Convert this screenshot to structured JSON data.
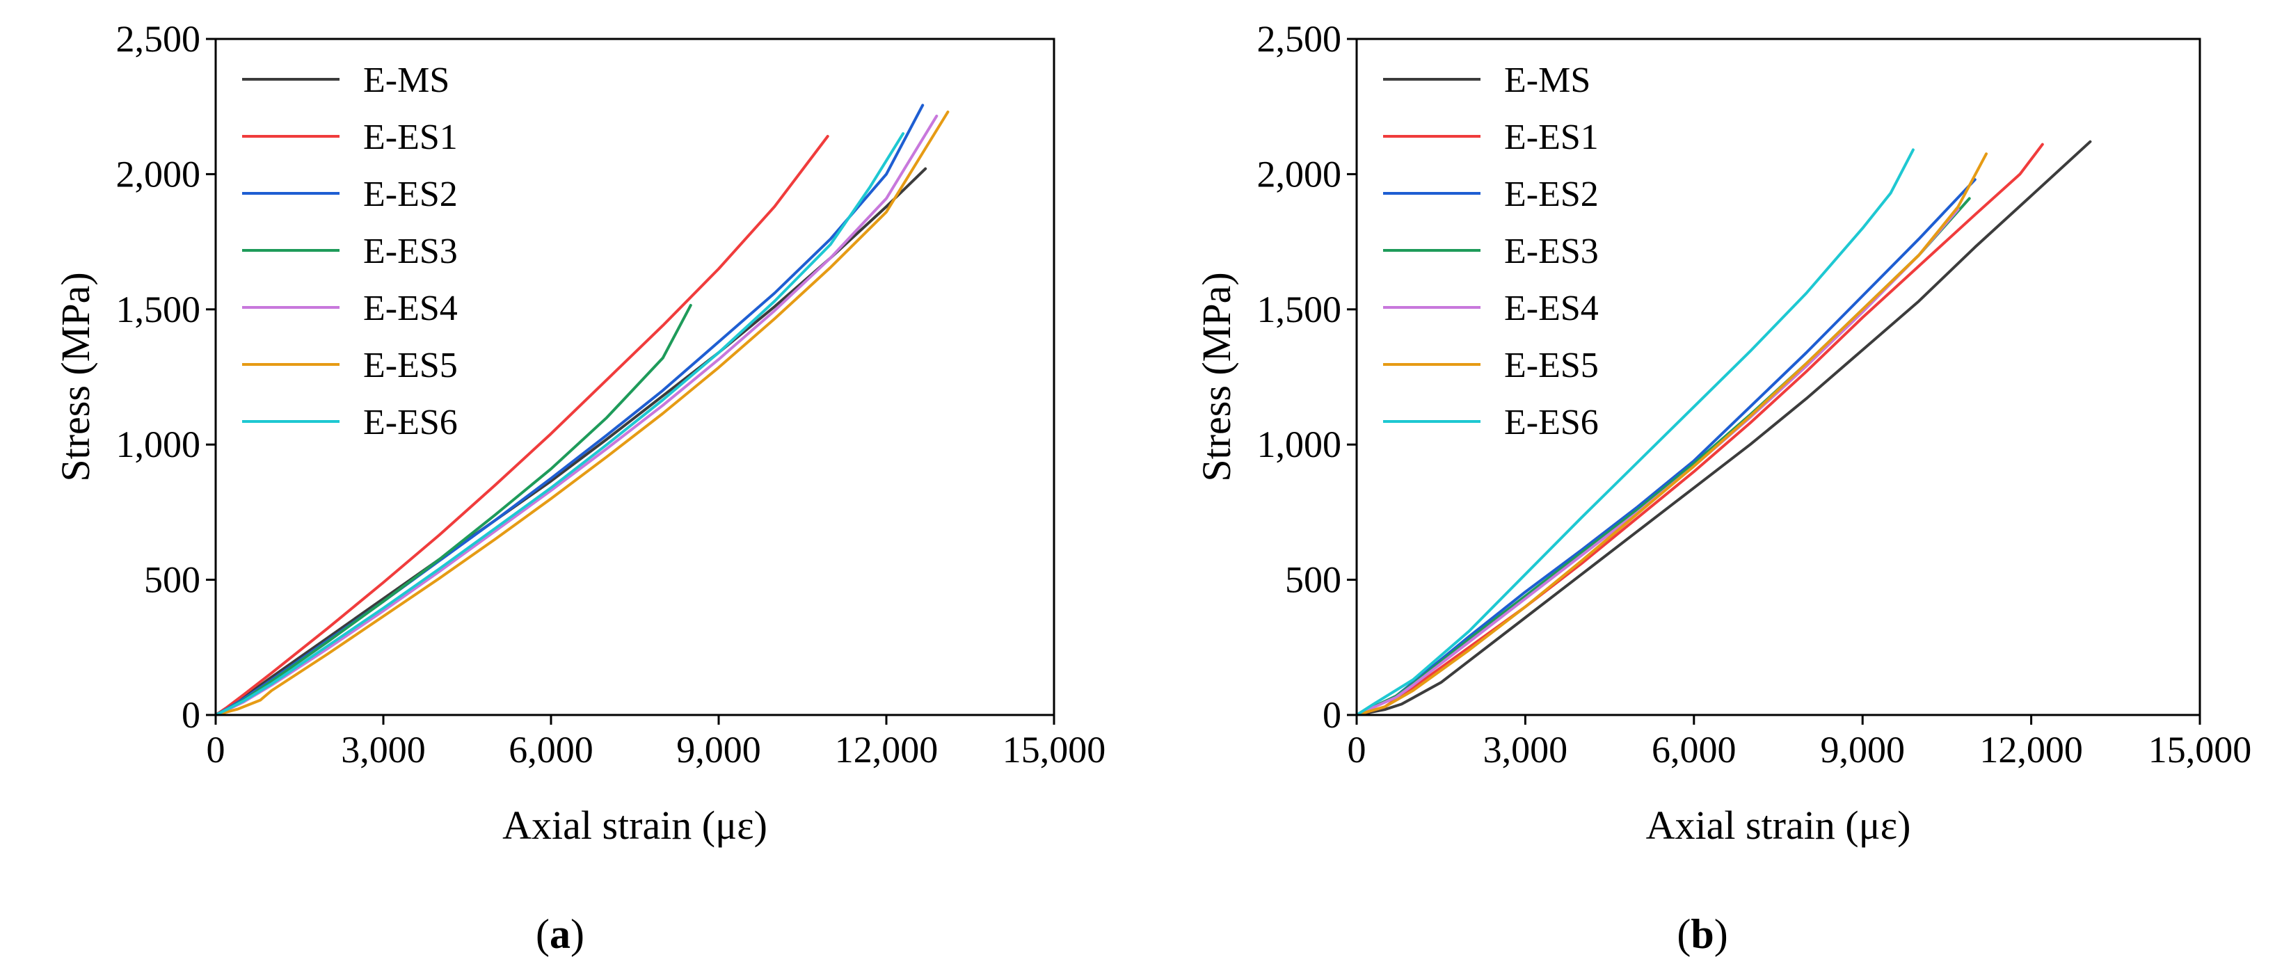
{
  "chart_data": [
    {
      "type": "line",
      "panel_label": "a",
      "xlabel": "Axial strain (με)",
      "ylabel": "Stress (MPa)",
      "xlim": [
        0,
        15000
      ],
      "ylim": [
        0,
        2500
      ],
      "xticks": [
        0,
        3000,
        6000,
        9000,
        12000,
        15000
      ],
      "yticks": [
        0,
        500,
        1000,
        1500,
        2000,
        2500
      ],
      "xtick_labels": [
        "0",
        "3,000",
        "6,000",
        "9,000",
        "12,000",
        "15,000"
      ],
      "ytick_labels": [
        "0",
        "500",
        "1,000",
        "1,500",
        "2,000",
        "2,500"
      ],
      "legend_position": "top-left",
      "series": [
        {
          "name": "E-MS",
          "color": "#3c3c3c",
          "points": [
            [
              0,
              0
            ],
            [
              200,
              25
            ],
            [
              500,
              65
            ],
            [
              1000,
              140
            ],
            [
              2000,
              285
            ],
            [
              3000,
              430
            ],
            [
              4000,
              575
            ],
            [
              5000,
              720
            ],
            [
              6000,
              865
            ],
            [
              7000,
              1020
            ],
            [
              8000,
              1180
            ],
            [
              9000,
              1340
            ],
            [
              10000,
              1510
            ],
            [
              11000,
              1690
            ],
            [
              12000,
              1880
            ],
            [
              12700,
              2020
            ]
          ]
        },
        {
          "name": "E-ES1",
          "color": "#f03c3c",
          "points": [
            [
              0,
              0
            ],
            [
              200,
              28
            ],
            [
              500,
              75
            ],
            [
              1000,
              155
            ],
            [
              2000,
              320
            ],
            [
              3000,
              490
            ],
            [
              4000,
              665
            ],
            [
              5000,
              850
            ],
            [
              6000,
              1040
            ],
            [
              7000,
              1240
            ],
            [
              8000,
              1440
            ],
            [
              9000,
              1650
            ],
            [
              10000,
              1880
            ],
            [
              10950,
              2140
            ]
          ]
        },
        {
          "name": "E-ES2",
          "color": "#1e5ed2",
          "points": [
            [
              0,
              0
            ],
            [
              200,
              22
            ],
            [
              500,
              60
            ],
            [
              1000,
              130
            ],
            [
              2000,
              275
            ],
            [
              3000,
              420
            ],
            [
              4000,
              570
            ],
            [
              5000,
              720
            ],
            [
              6000,
              875
            ],
            [
              7000,
              1035
            ],
            [
              8000,
              1200
            ],
            [
              9000,
              1380
            ],
            [
              10000,
              1560
            ],
            [
              11000,
              1760
            ],
            [
              12000,
              2000
            ],
            [
              12650,
              2255
            ]
          ]
        },
        {
          "name": "E-ES3",
          "color": "#1e9b5a",
          "points": [
            [
              0,
              0
            ],
            [
              200,
              20
            ],
            [
              500,
              55
            ],
            [
              1000,
              125
            ],
            [
              2000,
              270
            ],
            [
              3000,
              420
            ],
            [
              4000,
              575
            ],
            [
              5000,
              740
            ],
            [
              6000,
              910
            ],
            [
              7000,
              1100
            ],
            [
              8000,
              1320
            ],
            [
              8500,
              1515
            ]
          ]
        },
        {
          "name": "E-ES4",
          "color": "#c878dc",
          "points": [
            [
              0,
              0
            ],
            [
              200,
              18
            ],
            [
              500,
              48
            ],
            [
              1000,
              110
            ],
            [
              2000,
              245
            ],
            [
              3000,
              385
            ],
            [
              4000,
              530
            ],
            [
              5000,
              680
            ],
            [
              6000,
              830
            ],
            [
              7000,
              985
            ],
            [
              8000,
              1145
            ],
            [
              9000,
              1315
            ],
            [
              10000,
              1495
            ],
            [
              11000,
              1690
            ],
            [
              12000,
              1910
            ],
            [
              12900,
              2215
            ]
          ]
        },
        {
          "name": "E-ES5",
          "color": "#e69b14",
          "points": [
            [
              0,
              0
            ],
            [
              400,
              22
            ],
            [
              800,
              55
            ],
            [
              1000,
              90
            ],
            [
              2000,
              225
            ],
            [
              3000,
              365
            ],
            [
              4000,
              505
            ],
            [
              5000,
              650
            ],
            [
              6000,
              800
            ],
            [
              7000,
              955
            ],
            [
              8000,
              1115
            ],
            [
              9000,
              1285
            ],
            [
              10000,
              1465
            ],
            [
              11000,
              1655
            ],
            [
              12000,
              1860
            ],
            [
              13100,
              2230
            ]
          ]
        },
        {
          "name": "E-ES6",
          "color": "#1ec8d2",
          "points": [
            [
              0,
              0
            ],
            [
              200,
              20
            ],
            [
              500,
              52
            ],
            [
              1000,
              115
            ],
            [
              2000,
              255
            ],
            [
              3000,
              395
            ],
            [
              4000,
              540
            ],
            [
              5000,
              690
            ],
            [
              6000,
              840
            ],
            [
              7000,
              1000
            ],
            [
              8000,
              1165
            ],
            [
              9000,
              1340
            ],
            [
              10000,
              1530
            ],
            [
              11000,
              1740
            ],
            [
              11700,
              1950
            ],
            [
              12300,
              2150
            ]
          ]
        }
      ]
    },
    {
      "type": "line",
      "panel_label": "b",
      "xlabel": "Axial strain (με)",
      "ylabel": "Stress (MPa)",
      "xlim": [
        0,
        15000
      ],
      "ylim": [
        0,
        2500
      ],
      "xticks": [
        0,
        3000,
        6000,
        9000,
        12000,
        15000
      ],
      "yticks": [
        0,
        500,
        1000,
        1500,
        2000,
        2500
      ],
      "xtick_labels": [
        "0",
        "3,000",
        "6,000",
        "9,000",
        "12,000",
        "15,000"
      ],
      "ytick_labels": [
        "0",
        "500",
        "1,000",
        "1,500",
        "2,000",
        "2,500"
      ],
      "legend_position": "top-left",
      "series": [
        {
          "name": "E-MS",
          "color": "#3c3c3c",
          "points": [
            [
              0,
              0
            ],
            [
              500,
              20
            ],
            [
              800,
              40
            ],
            [
              1500,
              120
            ],
            [
              2000,
              200
            ],
            [
              3000,
              360
            ],
            [
              4000,
              520
            ],
            [
              5000,
              680
            ],
            [
              6000,
              840
            ],
            [
              7000,
              1000
            ],
            [
              8000,
              1170
            ],
            [
              9000,
              1350
            ],
            [
              10000,
              1530
            ],
            [
              11000,
              1730
            ],
            [
              12000,
              1920
            ],
            [
              13050,
              2120
            ]
          ]
        },
        {
          "name": "E-ES1",
          "color": "#f03c3c",
          "points": [
            [
              0,
              0
            ],
            [
              500,
              30
            ],
            [
              1000,
              100
            ],
            [
              2000,
              250
            ],
            [
              3000,
              400
            ],
            [
              4000,
              560
            ],
            [
              5000,
              730
            ],
            [
              6000,
              900
            ],
            [
              7000,
              1080
            ],
            [
              8000,
              1270
            ],
            [
              9000,
              1470
            ],
            [
              10000,
              1660
            ],
            [
              11000,
              1850
            ],
            [
              11800,
              2000
            ],
            [
              12200,
              2110
            ]
          ]
        },
        {
          "name": "E-ES2",
          "color": "#1e5ed2",
          "points": [
            [
              0,
              0
            ],
            [
              300,
              30
            ],
            [
              700,
              70
            ],
            [
              1000,
              120
            ],
            [
              2000,
              290
            ],
            [
              3000,
              455
            ],
            [
              4000,
              610
            ],
            [
              5000,
              770
            ],
            [
              6000,
              940
            ],
            [
              7000,
              1140
            ],
            [
              8000,
              1340
            ],
            [
              9000,
              1550
            ],
            [
              10000,
              1760
            ],
            [
              11000,
              1980
            ]
          ]
        },
        {
          "name": "E-ES3",
          "color": "#1e9b5a",
          "points": [
            [
              0,
              0
            ],
            [
              300,
              30
            ],
            [
              700,
              70
            ],
            [
              1000,
              115
            ],
            [
              2000,
              280
            ],
            [
              3000,
              440
            ],
            [
              4000,
              600
            ],
            [
              5000,
              760
            ],
            [
              6000,
              930
            ],
            [
              7000,
              1110
            ],
            [
              8000,
              1300
            ],
            [
              9000,
              1500
            ],
            [
              10000,
              1700
            ],
            [
              10900,
              1910
            ]
          ]
        },
        {
          "name": "E-ES4",
          "color": "#c878dc",
          "points": [
            [
              0,
              0
            ],
            [
              300,
              28
            ],
            [
              700,
              65
            ],
            [
              1000,
              110
            ],
            [
              2000,
              270
            ],
            [
              3000,
              430
            ],
            [
              4000,
              590
            ],
            [
              5000,
              750
            ],
            [
              6000,
              920
            ],
            [
              7000,
              1100
            ],
            [
              8000,
              1290
            ],
            [
              9000,
              1490
            ],
            [
              10000,
              1700
            ],
            [
              10700,
              1870
            ]
          ]
        },
        {
          "name": "E-ES5",
          "color": "#e69b14",
          "points": [
            [
              0,
              0
            ],
            [
              500,
              30
            ],
            [
              1000,
              90
            ],
            [
              2000,
              240
            ],
            [
              3000,
              400
            ],
            [
              4000,
              570
            ],
            [
              5000,
              745
            ],
            [
              6000,
              920
            ],
            [
              7000,
              1105
            ],
            [
              8000,
              1300
            ],
            [
              9000,
              1500
            ],
            [
              10000,
              1700
            ],
            [
              10700,
              1880
            ],
            [
              11200,
              2075
            ]
          ]
        },
        {
          "name": "E-ES6",
          "color": "#1ec8d2",
          "points": [
            [
              0,
              0
            ],
            [
              300,
              40
            ],
            [
              1000,
              130
            ],
            [
              2000,
              310
            ],
            [
              3000,
              520
            ],
            [
              4000,
              730
            ],
            [
              5000,
              935
            ],
            [
              6000,
              1140
            ],
            [
              7000,
              1345
            ],
            [
              8000,
              1560
            ],
            [
              9000,
              1800
            ],
            [
              9500,
              1930
            ],
            [
              9900,
              2090
            ]
          ]
        }
      ]
    }
  ]
}
